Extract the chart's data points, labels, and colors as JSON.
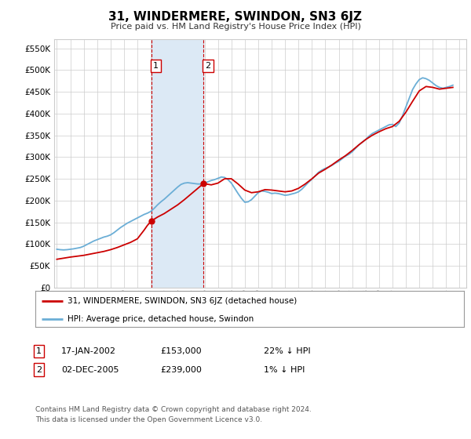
{
  "title": "31, WINDERMERE, SWINDON, SN3 6JZ",
  "subtitle": "Price paid vs. HM Land Registry's House Price Index (HPI)",
  "ytick_vals": [
    0,
    50000,
    100000,
    150000,
    200000,
    250000,
    300000,
    350000,
    400000,
    450000,
    500000,
    550000
  ],
  "ylim": [
    0,
    570000
  ],
  "xlim_start": 1994.8,
  "xlim_end": 2025.5,
  "sale1_date": 2002.04,
  "sale1_price": 153000,
  "sale2_date": 2005.92,
  "sale2_price": 239000,
  "legend_line1": "31, WINDERMERE, SWINDON, SN3 6JZ (detached house)",
  "legend_line2": "HPI: Average price, detached house, Swindon",
  "footer1": "Contains HM Land Registry data © Crown copyright and database right 2024.",
  "footer2": "This data is licensed under the Open Government Licence v3.0.",
  "hpi_color": "#6baed6",
  "price_color": "#cc0000",
  "shade_color": "#dce9f5",
  "grid_color": "#cccccc",
  "background_color": "#ffffff",
  "hpi_data_x": [
    1995.0,
    1995.25,
    1995.5,
    1995.75,
    1996.0,
    1996.25,
    1996.5,
    1996.75,
    1997.0,
    1997.25,
    1997.5,
    1997.75,
    1998.0,
    1998.25,
    1998.5,
    1998.75,
    1999.0,
    1999.25,
    1999.5,
    1999.75,
    2000.0,
    2000.25,
    2000.5,
    2000.75,
    2001.0,
    2001.25,
    2001.5,
    2001.75,
    2002.0,
    2002.25,
    2002.5,
    2002.75,
    2003.0,
    2003.25,
    2003.5,
    2003.75,
    2004.0,
    2004.25,
    2004.5,
    2004.75,
    2005.0,
    2005.25,
    2005.5,
    2005.75,
    2006.0,
    2006.25,
    2006.5,
    2006.75,
    2007.0,
    2007.25,
    2007.5,
    2007.75,
    2008.0,
    2008.25,
    2008.5,
    2008.75,
    2009.0,
    2009.25,
    2009.5,
    2009.75,
    2010.0,
    2010.25,
    2010.5,
    2010.75,
    2011.0,
    2011.25,
    2011.5,
    2011.75,
    2012.0,
    2012.25,
    2012.5,
    2012.75,
    2013.0,
    2013.25,
    2013.5,
    2013.75,
    2014.0,
    2014.25,
    2014.5,
    2014.75,
    2015.0,
    2015.25,
    2015.5,
    2015.75,
    2016.0,
    2016.25,
    2016.5,
    2016.75,
    2017.0,
    2017.25,
    2017.5,
    2017.75,
    2018.0,
    2018.25,
    2018.5,
    2018.75,
    2019.0,
    2019.25,
    2019.5,
    2019.75,
    2020.0,
    2020.25,
    2020.5,
    2020.75,
    2021.0,
    2021.25,
    2021.5,
    2021.75,
    2022.0,
    2022.25,
    2022.5,
    2022.75,
    2023.0,
    2023.25,
    2023.5,
    2023.75,
    2024.0,
    2024.25,
    2024.5
  ],
  "hpi_data_y": [
    88000,
    87000,
    86500,
    87000,
    88000,
    89000,
    90500,
    92000,
    95000,
    99000,
    103000,
    107000,
    110000,
    113000,
    116000,
    118000,
    121000,
    126000,
    132000,
    138000,
    143000,
    148000,
    152000,
    156000,
    160000,
    164000,
    168000,
    171000,
    175000,
    182000,
    190000,
    197000,
    203000,
    210000,
    217000,
    224000,
    231000,
    237000,
    240000,
    241000,
    240000,
    239000,
    238000,
    238000,
    240000,
    243000,
    246000,
    248000,
    251000,
    254000,
    253000,
    248000,
    240000,
    228000,
    216000,
    205000,
    196000,
    197000,
    202000,
    210000,
    218000,
    222000,
    221000,
    219000,
    216000,
    217000,
    216000,
    214000,
    212000,
    213000,
    215000,
    217000,
    220000,
    226000,
    234000,
    242000,
    249000,
    257000,
    265000,
    270000,
    274000,
    277000,
    281000,
    286000,
    290000,
    296000,
    302000,
    306000,
    312000,
    320000,
    328000,
    334000,
    340000,
    348000,
    354000,
    358000,
    362000,
    366000,
    370000,
    374000,
    375000,
    370000,
    378000,
    395000,
    415000,
    435000,
    455000,
    468000,
    478000,
    482000,
    480000,
    476000,
    470000,
    464000,
    460000,
    458000,
    460000,
    462000,
    465000
  ],
  "price_data_x": [
    1995.0,
    1996.0,
    1997.0,
    1997.5,
    1998.0,
    1998.5,
    1999.0,
    1999.5,
    2000.0,
    2000.5,
    2001.0,
    2001.25,
    2001.5,
    2001.75,
    2002.04,
    2002.5,
    2003.0,
    2003.5,
    2004.0,
    2004.5,
    2005.0,
    2005.5,
    2005.92,
    2006.5,
    2007.0,
    2007.5,
    2008.0,
    2008.5,
    2009.0,
    2009.5,
    2010.0,
    2010.5,
    2011.0,
    2011.5,
    2012.0,
    2012.5,
    2013.0,
    2013.5,
    2014.0,
    2014.5,
    2015.0,
    2015.5,
    2016.0,
    2016.5,
    2017.0,
    2017.5,
    2018.0,
    2018.5,
    2019.0,
    2019.5,
    2020.0,
    2020.5,
    2021.0,
    2021.5,
    2022.0,
    2022.5,
    2023.0,
    2023.5,
    2024.0,
    2024.5
  ],
  "price_data_y": [
    65000,
    70000,
    74000,
    77000,
    80000,
    83000,
    87000,
    92000,
    98000,
    104000,
    112000,
    122000,
    132000,
    143000,
    153000,
    162000,
    170000,
    180000,
    190000,
    202000,
    215000,
    228000,
    239000,
    236000,
    240000,
    250000,
    250000,
    238000,
    224000,
    218000,
    220000,
    225000,
    224000,
    222000,
    220000,
    222000,
    228000,
    238000,
    250000,
    263000,
    272000,
    282000,
    293000,
    303000,
    315000,
    328000,
    340000,
    350000,
    358000,
    365000,
    370000,
    382000,
    403000,
    428000,
    452000,
    462000,
    460000,
    456000,
    458000,
    460000
  ]
}
